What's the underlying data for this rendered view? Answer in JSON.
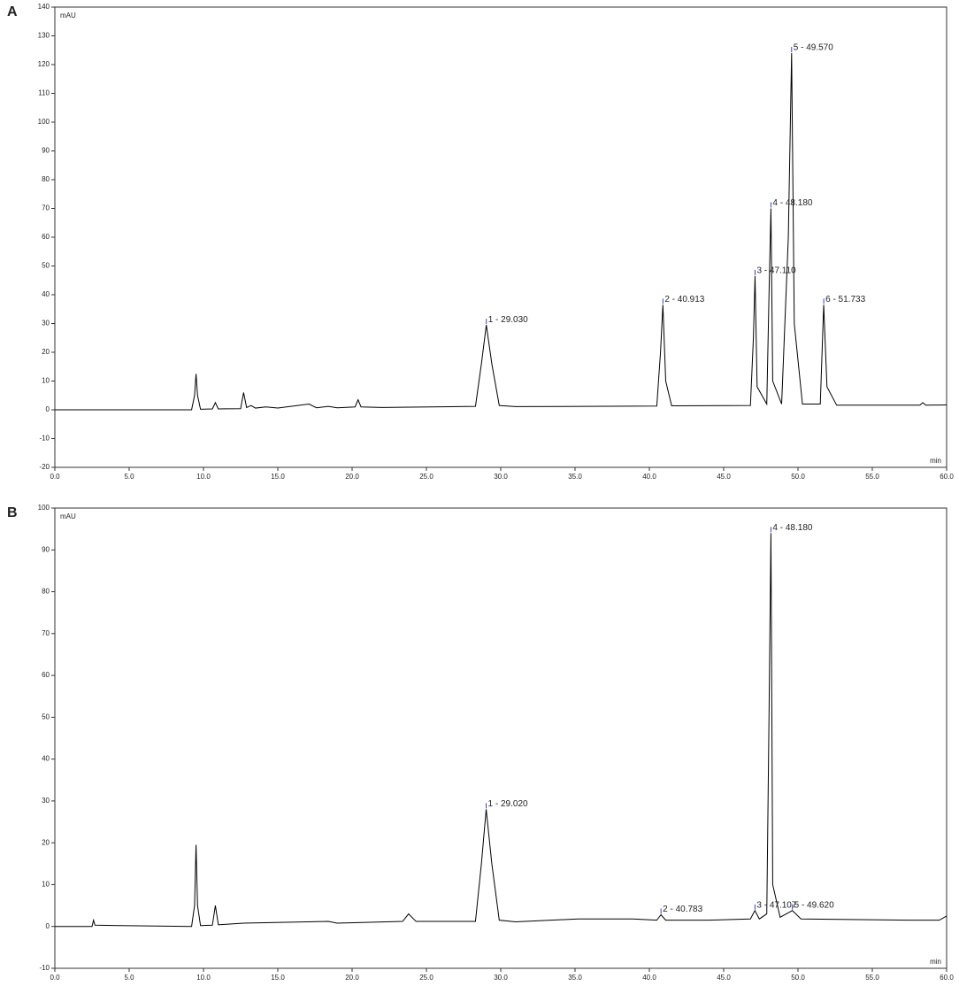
{
  "chart_data": [
    {
      "type": "line",
      "panel": "A",
      "y_label": "mAU",
      "x_label": "min",
      "color": "#000000",
      "x": [
        0,
        9.2,
        9.4,
        9.5,
        9.6,
        9.8,
        10.6,
        10.8,
        11.0,
        12.5,
        12.7,
        12.9,
        13.2,
        13.5,
        14.2,
        15.0,
        17.1,
        17.6,
        18.4,
        19.0,
        20.2,
        20.4,
        20.6,
        22,
        28.3,
        28.7,
        29.03,
        29.4,
        29.9,
        31,
        40.5,
        40.75,
        40.91,
        41.1,
        41.5,
        46.8,
        47.0,
        47.11,
        47.25,
        47.9,
        48.05,
        48.18,
        48.3,
        48.9,
        49.35,
        49.57,
        49.75,
        50.3,
        51.5,
        51.73,
        51.95,
        52.6,
        58.2,
        58.4,
        58.6,
        60
      ],
      "values": [
        0,
        0,
        5,
        12.5,
        5,
        0.2,
        0.3,
        2.5,
        0.3,
        0.4,
        6,
        0.8,
        1.5,
        0.6,
        1,
        0.6,
        2,
        0.7,
        1.2,
        0.7,
        1,
        3.5,
        1,
        0.8,
        1.2,
        16,
        29.5,
        16,
        1.5,
        1.1,
        1.3,
        20,
        36.5,
        10,
        1.4,
        1.5,
        25,
        46.5,
        8,
        2,
        40,
        70,
        10,
        2,
        60,
        124,
        30,
        2,
        2,
        36.5,
        8,
        1.6,
        1.6,
        2.5,
        1.6,
        1.7
      ],
      "xlim": [
        0,
        60
      ],
      "xticks": [
        {
          "value": 0,
          "label": "0.0"
        },
        {
          "value": 5,
          "label": "5.0"
        },
        {
          "value": 10,
          "label": "10.0"
        },
        {
          "value": 15,
          "label": "15.0"
        },
        {
          "value": 20,
          "label": "20.0"
        },
        {
          "value": 25,
          "label": "25.0"
        },
        {
          "value": 30,
          "label": "30.0"
        },
        {
          "value": 35,
          "label": "35.0"
        },
        {
          "value": 40,
          "label": "40.0"
        },
        {
          "value": 45,
          "label": "45.0"
        },
        {
          "value": 50,
          "label": "50.0"
        },
        {
          "value": 55,
          "label": "55.0"
        },
        {
          "value": 60,
          "label": "60.0"
        }
      ],
      "ylim": [
        -20,
        140
      ],
      "yticks": [
        -20,
        -10,
        0,
        10,
        20,
        30,
        40,
        50,
        60,
        70,
        80,
        90,
        100,
        110,
        120,
        130,
        140
      ],
      "annotations": [
        {
          "text": "1 - 29.030",
          "x": 29.03,
          "y": 29.5
        },
        {
          "text": "2 - 40.913",
          "x": 40.913,
          "y": 36.5
        },
        {
          "text": "3 - 47.110",
          "x": 47.11,
          "y": 46.5
        },
        {
          "text": "4 - 48.180",
          "x": 48.18,
          "y": 70
        },
        {
          "text": "5 - 49.570",
          "x": 49.57,
          "y": 124
        },
        {
          "text": "6 - 51.733",
          "x": 51.733,
          "y": 36.5
        }
      ]
    },
    {
      "type": "line",
      "panel": "B",
      "y_label": "mAU",
      "x_label": "min",
      "color": "#000000",
      "x": [
        0,
        2.5,
        2.6,
        2.7,
        9.2,
        9.4,
        9.5,
        9.6,
        9.8,
        10.6,
        10.8,
        11.0,
        12.7,
        18.4,
        19,
        23.4,
        23.8,
        24.3,
        28.3,
        28.7,
        29.02,
        29.4,
        29.9,
        31,
        35.2,
        38.9,
        40.5,
        40.78,
        41.1,
        44,
        46.8,
        47.1,
        47.4,
        47.9,
        48.05,
        48.18,
        48.3,
        48.8,
        49.62,
        50.2,
        57.4,
        59.5,
        60
      ],
      "values": [
        0,
        0,
        1.5,
        0.3,
        0,
        5,
        19.5,
        5,
        0.2,
        0.3,
        5,
        0.4,
        0.8,
        1.2,
        0.8,
        1.2,
        3,
        1.2,
        1.2,
        15,
        28,
        15,
        1.5,
        1.1,
        1.8,
        1.8,
        1.5,
        2.8,
        1.5,
        1.5,
        1.8,
        3.8,
        1.8,
        3,
        50,
        94,
        10,
        2.2,
        3.8,
        1.8,
        1.5,
        1.5,
        2.5
      ],
      "xlim": [
        0,
        60
      ],
      "xticks": [
        {
          "value": 0,
          "label": "0.0"
        },
        {
          "value": 5,
          "label": "5.0"
        },
        {
          "value": 10,
          "label": "10.0"
        },
        {
          "value": 15,
          "label": "15.0"
        },
        {
          "value": 20,
          "label": "20.0"
        },
        {
          "value": 25,
          "label": "25.0"
        },
        {
          "value": 30,
          "label": "30.0"
        },
        {
          "value": 35,
          "label": "35.0"
        },
        {
          "value": 40,
          "label": "40.0"
        },
        {
          "value": 45,
          "label": "45.0"
        },
        {
          "value": 50,
          "label": "50.0"
        },
        {
          "value": 55,
          "label": "55.0"
        },
        {
          "value": 60,
          "label": "60.0"
        }
      ],
      "ylim": [
        -10,
        100
      ],
      "yticks": [
        -10,
        0,
        10,
        20,
        30,
        40,
        50,
        60,
        70,
        80,
        90,
        100
      ],
      "annotations": [
        {
          "text": "1 - 29.020",
          "x": 29.02,
          "y": 28
        },
        {
          "text": "2 - 40.783",
          "x": 40.783,
          "y": 2.8
        },
        {
          "text": "3 - 47.107",
          "x": 47.107,
          "y": 3.8
        },
        {
          "text": "4 - 48.180",
          "x": 48.18,
          "y": 94
        },
        {
          "text": "5 - 49.620",
          "x": 49.62,
          "y": 3.8
        }
      ]
    }
  ]
}
